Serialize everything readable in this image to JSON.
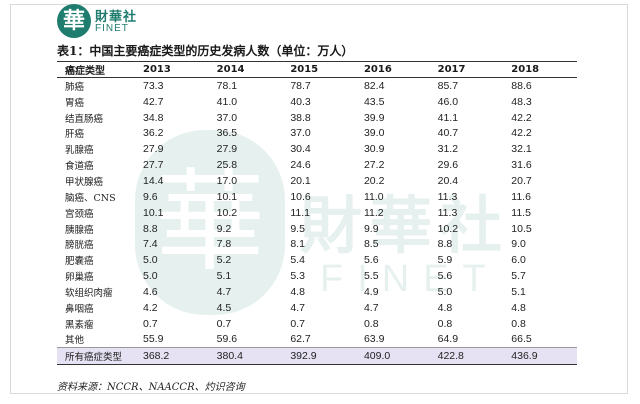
{
  "logo": {
    "seal_char": "華",
    "cn": "財華社",
    "en": "FINET"
  },
  "caption": "表1：中国主要癌症类型的历史发病人数（单位：万人）",
  "table": {
    "headers": [
      "癌症类型",
      "2013",
      "2014",
      "2015",
      "2016",
      "2017",
      "2018"
    ],
    "rows": [
      [
        "肺癌",
        "73.3",
        "78.1",
        "78.7",
        "82.4",
        "85.7",
        "88.6"
      ],
      [
        "胃癌",
        "42.7",
        "41.0",
        "40.3",
        "43.5",
        "46.0",
        "48.3"
      ],
      [
        "结直肠癌",
        "34.8",
        "37.0",
        "38.8",
        "39.9",
        "41.1",
        "42.2"
      ],
      [
        "肝癌",
        "36.2",
        "36.5",
        "37.0",
        "39.0",
        "40.7",
        "42.2"
      ],
      [
        "乳腺癌",
        "27.9",
        "27.9",
        "30.4",
        "30.9",
        "31.2",
        "32.1"
      ],
      [
        "食道癌",
        "27.7",
        "25.8",
        "24.6",
        "27.2",
        "29.6",
        "31.6"
      ],
      [
        "甲状腺癌",
        "14.4",
        "17.0",
        "20.1",
        "20.2",
        "20.4",
        "20.7"
      ],
      [
        "脑癌、CNS",
        "9.6",
        "10.1",
        "10.6",
        "11.0",
        "11.3",
        "11.6"
      ],
      [
        "宫颈癌",
        "10.1",
        "10.2",
        "11.1",
        "11.2",
        "11.3",
        "11.5"
      ],
      [
        "胰腺癌",
        "8.8",
        "9.2",
        "9.5",
        "9.9",
        "10.2",
        "10.5"
      ],
      [
        "膀胱癌",
        "7.4",
        "7.8",
        "8.1",
        "8.5",
        "8.8",
        "9.0"
      ],
      [
        "肥囊癌",
        "5.0",
        "5.2",
        "5.4",
        "5.6",
        "5.9",
        "6.0"
      ],
      [
        "卵巢癌",
        "5.0",
        "5.1",
        "5.3",
        "5.5",
        "5.6",
        "5.7"
      ],
      [
        "软组织肉瘤",
        "4.6",
        "4.7",
        "4.8",
        "4.9",
        "5.0",
        "5.1"
      ],
      [
        "鼻咽癌",
        "4.2",
        "4.5",
        "4.7",
        "4.7",
        "4.8",
        "4.8"
      ],
      [
        "黑素瘤",
        "0.7",
        "0.7",
        "0.7",
        "0.8",
        "0.8",
        "0.8"
      ],
      [
        "其他",
        "55.9",
        "59.6",
        "62.7",
        "63.9",
        "64.9",
        "66.5"
      ]
    ],
    "total": [
      "所有癌症类型",
      "368.2",
      "380.4",
      "392.9",
      "409.0",
      "422.8",
      "436.9"
    ]
  },
  "source": "资料来源：NCCR、NAACCR、灼识咨询",
  "watermark": {
    "seal_char": "華",
    "cn": "財華社",
    "en": "FINET"
  },
  "colors": {
    "brand": "#1f7d6f",
    "total_row_bg": "#e6e2f3"
  }
}
